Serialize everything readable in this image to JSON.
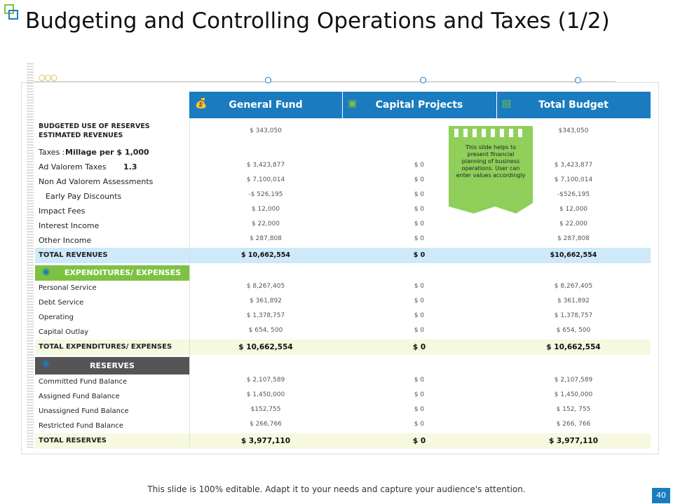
{
  "title": "Budgeting and Controlling Operations and Taxes (1/2)",
  "table": {
    "columns": [
      "General Fund",
      "Capital Projects",
      "Total Budget"
    ],
    "sections": [
      {
        "rows": [
          {
            "label": "BUDGETED USE OF RESERVES",
            "label2": "ESTIMATED REVENUES",
            "values": [
              "$ 343,050",
              null,
              "$343,050"
            ]
          },
          {
            "label": "Taxes : ",
            "label_bold": "Millage per $ 1,000"
          },
          {
            "label": "Ad Valorem Taxes",
            "label_bold": "1.3",
            "values": [
              "$ 3,423,877",
              "$ 0",
              "$ 3,423,877"
            ]
          },
          {
            "label": "Non Ad Valorem Assessments",
            "values": [
              "$ 7,100,014",
              "$ 0",
              "$ 7,100,014"
            ]
          },
          {
            "label": "Early Pay Discounts",
            "values": [
              "-$ 526,195",
              "$ 0",
              "-$526,195"
            ]
          },
          {
            "label": "Impact Fees",
            "values": [
              "$ 12,000",
              "$ 0",
              "$ 12,000"
            ]
          },
          {
            "label": "Interest Income",
            "values": [
              "$ 22,000",
              "$ 0",
              "$ 22,000"
            ]
          },
          {
            "label": "Other Income",
            "values": [
              "$ 287,808",
              "$ 0",
              "$ 287,808"
            ]
          }
        ],
        "total": {
          "label": "TOTAL REVENUES",
          "values": [
            "$ 10,662,554",
            "$ 0",
            "$10,662,554"
          ]
        }
      },
      {
        "heading": "EXPENDITURES/ EXPENSES",
        "rows": [
          {
            "label": "Personal Service",
            "values": [
              "$ 8,267,405",
              "$ 0",
              "$ 8,267,405"
            ]
          },
          {
            "label": "Debt Service",
            "values": [
              "$ 361,892",
              "$ 0",
              "$ 361,892"
            ]
          },
          {
            "label": "Operating",
            "values": [
              "$ 1,378,757",
              "$ 0",
              "$ 1,378,757"
            ]
          },
          {
            "label": "Capital Outlay",
            "values": [
              "$ 654, 500",
              "$ 0",
              "$ 654, 500"
            ]
          }
        ],
        "total": {
          "label": "TOTAL EXPENDITURES/ EXPENSES",
          "values": [
            "$ 10,662,554",
            "$ 0",
            "$ 10,662,554"
          ]
        }
      },
      {
        "heading": "RESERVES",
        "rows": [
          {
            "label": "Committed Fund Balance",
            "values": [
              "$ 2,107,589",
              "$ 0",
              "$ 2,107,589"
            ]
          },
          {
            "label": "Assigned Fund Balance",
            "values": [
              "$ 1,450,000",
              "$ 0",
              "$ 1,450,000"
            ]
          },
          {
            "label": "Unassigned Fund Balance",
            "values": [
              "$152,755",
              "$ 0",
              "$ 152, 755"
            ]
          },
          {
            "label": "Restricted Fund Balance",
            "values": [
              "$ 266,766",
              "$ 0",
              "$ 266, 766"
            ]
          }
        ],
        "total": {
          "label": "TOTAL RESERVES",
          "values": [
            "$ 3,977,110",
            "$ 0",
            "$ 3,977,110"
          ]
        }
      }
    ]
  },
  "note": "This slide helps to present financial planning of business operations. User can enter values accordingly",
  "footer": "This slide is 100% editable. Adapt it to your needs and capture your audience's attention.",
  "page_number": "40"
}
